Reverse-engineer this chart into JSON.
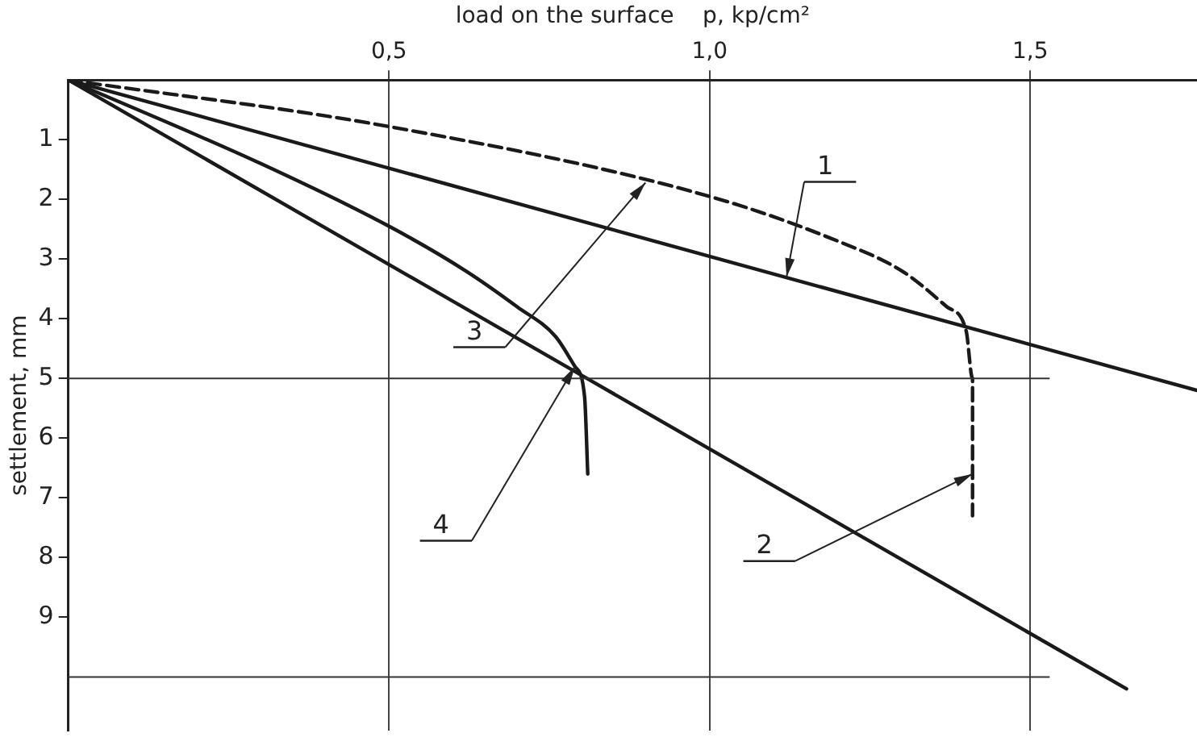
{
  "chart_data": {
    "type": "line",
    "xlabel": "load on the surface    p, kp/cm²",
    "ylabel": "settlement, mm",
    "xlim": [
      0,
      1.76
    ],
    "ylim": [
      10.9,
      0
    ],
    "xticks": [
      {
        "value": 0.5,
        "label": "0,5"
      },
      {
        "value": 1.0,
        "label": "1,0"
      },
      {
        "value": 1.5,
        "label": "1,5"
      }
    ],
    "yticks": [
      1,
      2,
      3,
      4,
      5,
      6,
      7,
      8,
      9
    ],
    "grid": "x",
    "marker": "none",
    "ref_lines": [
      {
        "axis": "y",
        "value": 5
      },
      {
        "axis": "y",
        "value": 10
      }
    ],
    "annotations": [
      {
        "text": "1",
        "x": 1.12,
        "y": 3.3
      },
      {
        "text": "2",
        "x": 1.41,
        "y": 6.6
      },
      {
        "text": "3",
        "x": 0.9,
        "y": 1.72
      },
      {
        "text": "4",
        "x": 0.79,
        "y": 4.8
      }
    ],
    "series": [
      {
        "color": "#1a1a1a",
        "line_style": "dashed",
        "x": [
          0,
          0.5,
          1.0,
          1.2,
          1.3,
          1.37,
          1.4,
          1.41,
          1.41
        ],
        "values": [
          0,
          0.78,
          1.95,
          2.7,
          3.2,
          3.8,
          4.2,
          5.0,
          7.3
        ]
      },
      {
        "color": "#1a1a1a",
        "line_style": "solid",
        "x": [
          0,
          1.76
        ],
        "values": [
          0,
          5.2
        ]
      },
      {
        "color": "#1a1a1a",
        "line_style": "solid",
        "x": [
          0,
          0.3,
          0.5,
          0.62,
          0.7,
          0.76,
          0.79,
          0.805,
          0.81
        ],
        "values": [
          0,
          1.4,
          2.45,
          3.2,
          3.8,
          4.3,
          4.8,
          5.3,
          6.6
        ]
      },
      {
        "color": "#1a1a1a",
        "line_style": "solid",
        "x": [
          0,
          1.65
        ],
        "values": [
          0,
          10.2
        ]
      }
    ]
  }
}
